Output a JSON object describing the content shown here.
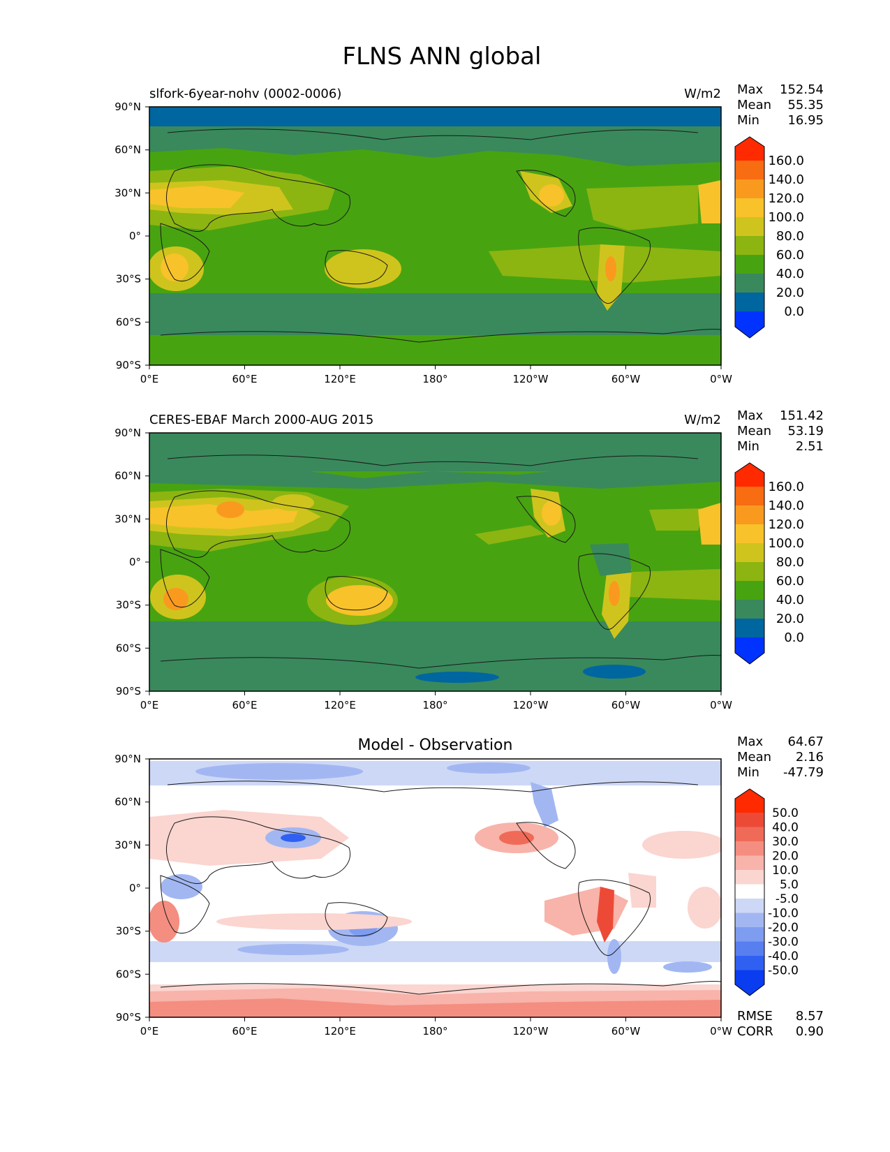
{
  "figure": {
    "title": "FLNS ANN global"
  },
  "axes": {
    "lat_ticks": [
      "90°N",
      "60°N",
      "30°N",
      "0°",
      "30°S",
      "60°S",
      "90°S"
    ],
    "lon_ticks": [
      "0°E",
      "60°E",
      "120°E",
      "180°",
      "120°W",
      "60°W",
      "0°W"
    ]
  },
  "colors": {
    "land_outline": "#1a1a1a",
    "frame": "#000000",
    "field_colorbar": [
      "#0033ff",
      "#0066a0",
      "#39895c",
      "#48a311",
      "#8cb511",
      "#cfc41d",
      "#f8c22a",
      "#f99a1f",
      "#f86c12",
      "#ff2a00"
    ],
    "diff_colorbar": [
      "#0a3cf0",
      "#3060f2",
      "#587ff0",
      "#7e9cf0",
      "#a2b7f2",
      "#cdd8f6",
      "#ffffff",
      "#fbd5d0",
      "#f8b3aa",
      "#f48e80",
      "#f06a58",
      "#ec4a37",
      "#ff2a00"
    ]
  },
  "chart_data": [
    {
      "type": "heatmap",
      "id": "model",
      "subtitle_left": "slfork-6year-nohv (0002-0006)",
      "subtitle_right": "W/m2",
      "stats": [
        {
          "label": "Max",
          "value": "152.54"
        },
        {
          "label": "Mean",
          "value": "55.35"
        },
        {
          "label": "Min",
          "value": "16.95"
        }
      ],
      "colorbar_levels": [
        "0.0",
        "20.0",
        "40.0",
        "60.0",
        "80.0",
        "100.0",
        "120.0",
        "140.0",
        "160.0"
      ],
      "lat_range": [
        -90,
        90
      ],
      "lon_range": [
        0,
        360
      ]
    },
    {
      "type": "heatmap",
      "id": "obs",
      "subtitle_left": "CERES-EBAF March 2000-AUG 2015",
      "subtitle_right": "W/m2",
      "stats": [
        {
          "label": "Max",
          "value": "151.42"
        },
        {
          "label": "Mean",
          "value": "53.19"
        },
        {
          "label": "Min",
          "value": "2.51"
        }
      ],
      "colorbar_levels": [
        "0.0",
        "20.0",
        "40.0",
        "60.0",
        "80.0",
        "100.0",
        "120.0",
        "140.0",
        "160.0"
      ],
      "lat_range": [
        -90,
        90
      ],
      "lon_range": [
        0,
        360
      ]
    },
    {
      "type": "heatmap",
      "id": "diff",
      "title": "Model - Observation",
      "stats": [
        {
          "label": "Max",
          "value": "64.67"
        },
        {
          "label": "Mean",
          "value": "2.16"
        },
        {
          "label": "Min",
          "value": "-47.79"
        }
      ],
      "colorbar_levels": [
        "-50.0",
        "-40.0",
        "-30.0",
        "-20.0",
        "-10.0",
        "-5.0",
        "5.0",
        "10.0",
        "20.0",
        "30.0",
        "40.0",
        "50.0"
      ],
      "metrics": [
        {
          "label": "RMSE",
          "value": "8.57"
        },
        {
          "label": "CORR",
          "value": "0.90"
        }
      ],
      "lat_range": [
        -90,
        90
      ],
      "lon_range": [
        0,
        360
      ]
    }
  ]
}
